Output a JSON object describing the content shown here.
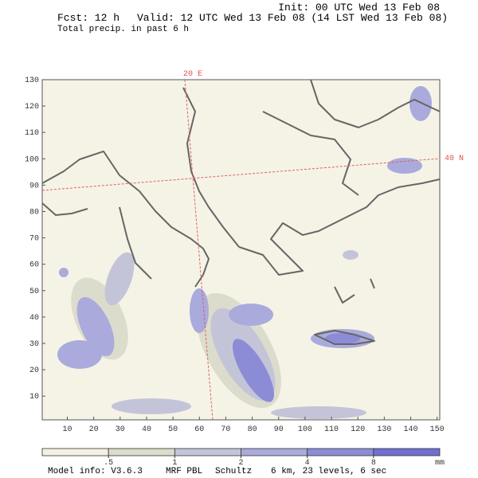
{
  "header": {
    "init": "Init: 00 UTC Wed 13 Feb 08",
    "forecast": "Fcst:  12 h",
    "valid": "Valid: 12 UTC Wed 13 Feb 08 (14 LST Wed 13 Feb 08)",
    "field": "Total precip. in past 6 h"
  },
  "map": {
    "xlim": [
      0.5,
      151
    ],
    "ylim": [
      1,
      130
    ],
    "xticks": [
      10,
      20,
      30,
      40,
      50,
      60,
      70,
      80,
      90,
      100,
      110,
      120,
      130,
      140,
      150
    ],
    "yticks": [
      10,
      20,
      30,
      40,
      50,
      60,
      70,
      80,
      90,
      100,
      110,
      120,
      130
    ],
    "meridian_label": "20 E",
    "parallel_label": "40 N"
  },
  "colorbar": {
    "levels": [
      {
        "value": 0.5,
        "label": ".5"
      },
      1,
      2,
      4,
      8
    ],
    "unit": "mm",
    "colors": [
      "#f3f1e4",
      "#dcdccc",
      "#c4c4d8",
      "#aaaadc",
      "#8c8cd6",
      "#7070d0"
    ]
  },
  "footer": {
    "model": "Model info: V3.6.3",
    "pbl": "MRF PBL",
    "scheme": "Schultz",
    "grid": "6 km, 23 levels, 6 sec"
  }
}
